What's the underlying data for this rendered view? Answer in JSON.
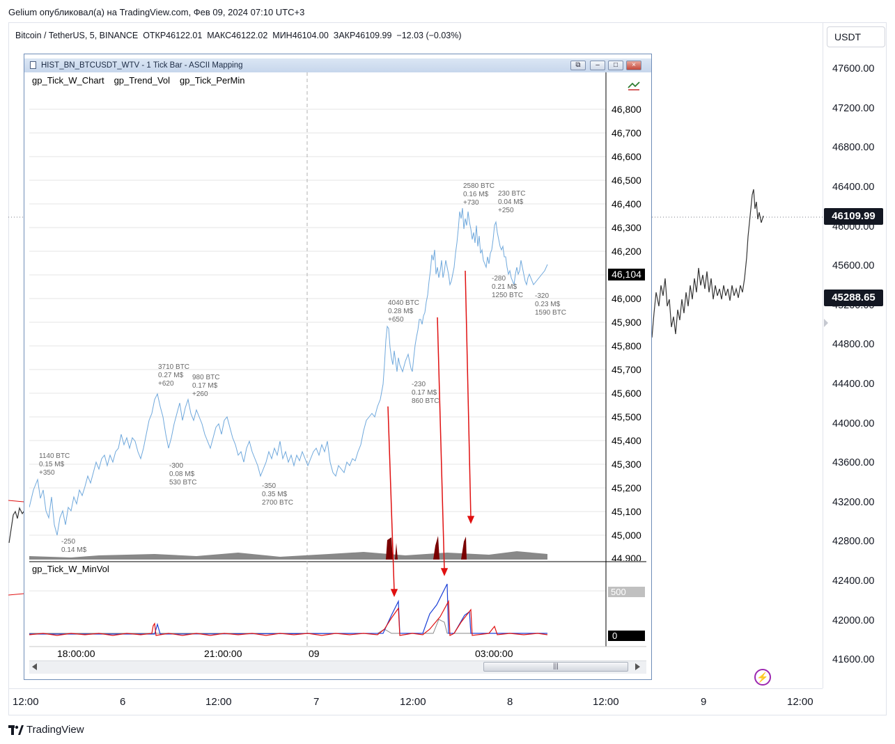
{
  "header": {
    "text": "Gelium опубликовал(а) на TradingView.com, Фев 09, 2024 07:10 UTC+3"
  },
  "symbol": {
    "name": "Bitcoin / TetherUS, 5, BINANCE",
    "open": "ОТКР46122.01",
    "high": "МАКС46122.02",
    "low": "МИН46104.00",
    "close": "ЗАКР46109.99",
    "change": "−12.03 (−0.03%)"
  },
  "price_axis": {
    "currency": "USDT",
    "labels": [
      "47600.00",
      "47200.00",
      "46800.00",
      "46400.00",
      "46000.00",
      "45600.00",
      "45200.00",
      "44800.00",
      "44400.00",
      "44000.00",
      "43600.00",
      "43200.00",
      "42800.00",
      "42400.00",
      "42000.00",
      "41600.00"
    ],
    "last_price": "46109.99",
    "second_tag": "45288.65",
    "last_price_color": "#131722"
  },
  "time_axis": {
    "labels": [
      "12:00",
      "6",
      "12:00",
      "7",
      "12:00",
      "8",
      "12:00",
      "9",
      "12:00"
    ]
  },
  "footer": {
    "logo": "TradingView"
  },
  "window": {
    "title": "HIST_BN_BTCUSDT_WTV - 1 Tick Bar - ASCII Mapping",
    "indicators": [
      "gp_Tick_W_Chart",
      "gp_Trend_Vol",
      "gp_Tick_PerMin"
    ],
    "subpanel_name": "gp_Tick_W_MinVol",
    "price_labels": [
      "46,800",
      "46,700",
      "46,600",
      "46,500",
      "46,400",
      "46,300",
      "46,200",
      "46,000",
      "45,900",
      "45,800",
      "45,700",
      "45,600",
      "45,500",
      "45,400",
      "45,300",
      "45,200",
      "45,100",
      "45,000",
      "44,900"
    ],
    "last_price": "46,104",
    "sub_label_top": "500",
    "sub_label_zero": "0",
    "time_labels": [
      "18:00:00",
      "21:00:00",
      "09",
      "03:00:00"
    ],
    "line_color": "#6fa8dc",
    "arrow_color": "#e01010",
    "annotations": [
      "1140 BTC\n0.15 M$\n+350",
      "-250\n0.14 M$\n",
      "3710 BTC\n0.27 M$\n+620",
      "980 BTC\n0.17 M$\n+260",
      "-300\n0.08 M$\n530 BTC",
      "-350\n0.35 M$\n2700 BTC",
      "4040 BTC\n0.28 M$\n+650",
      "-230\n0.17 M$\n860 BTC",
      "2580 BTC\n0.16 M$\n+730",
      "230 BTC\n0.04 M$\n+250",
      "-280\n0.21 M$\n1250 BTC",
      "-320\n0.23 M$\n1590 BTC"
    ]
  },
  "icons": {
    "lightning": "lightning-icon",
    "tv_logo": "tradingview-logo-icon",
    "doc": "document-icon"
  }
}
